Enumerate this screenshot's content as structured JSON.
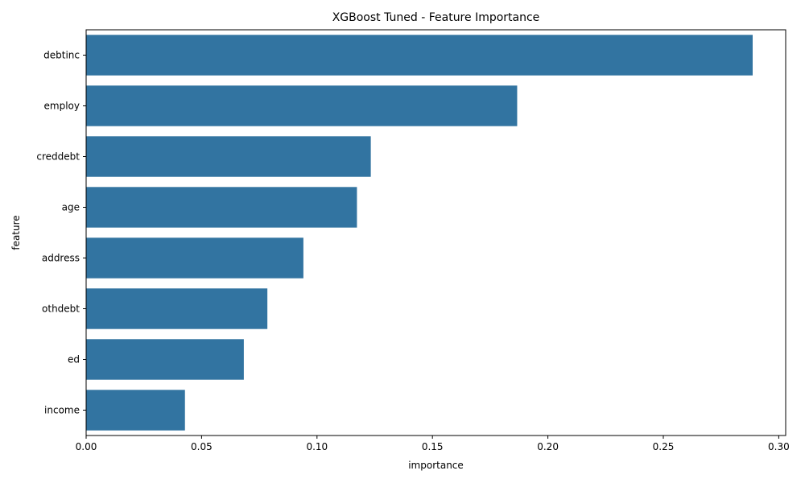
{
  "chart_data": {
    "type": "bar",
    "orientation": "horizontal",
    "title": "XGBoost Tuned - Feature Importance",
    "xlabel": "importance",
    "ylabel": "feature",
    "categories": [
      "debtinc",
      "employ",
      "creddebt",
      "age",
      "address",
      "othdebt",
      "ed",
      "income"
    ],
    "values": [
      0.2887,
      0.1867,
      0.1233,
      0.1173,
      0.0941,
      0.0785,
      0.0683,
      0.0428
    ],
    "xlim": [
      0,
      0.303
    ],
    "xticks": [
      0.0,
      0.05,
      0.1,
      0.15,
      0.2,
      0.25,
      0.3
    ],
    "xtick_labels": [
      "0.00",
      "0.05",
      "0.10",
      "0.15",
      "0.20",
      "0.25",
      "0.30"
    ],
    "bar_color": "#3274a1",
    "grid": false,
    "legend": "none"
  }
}
